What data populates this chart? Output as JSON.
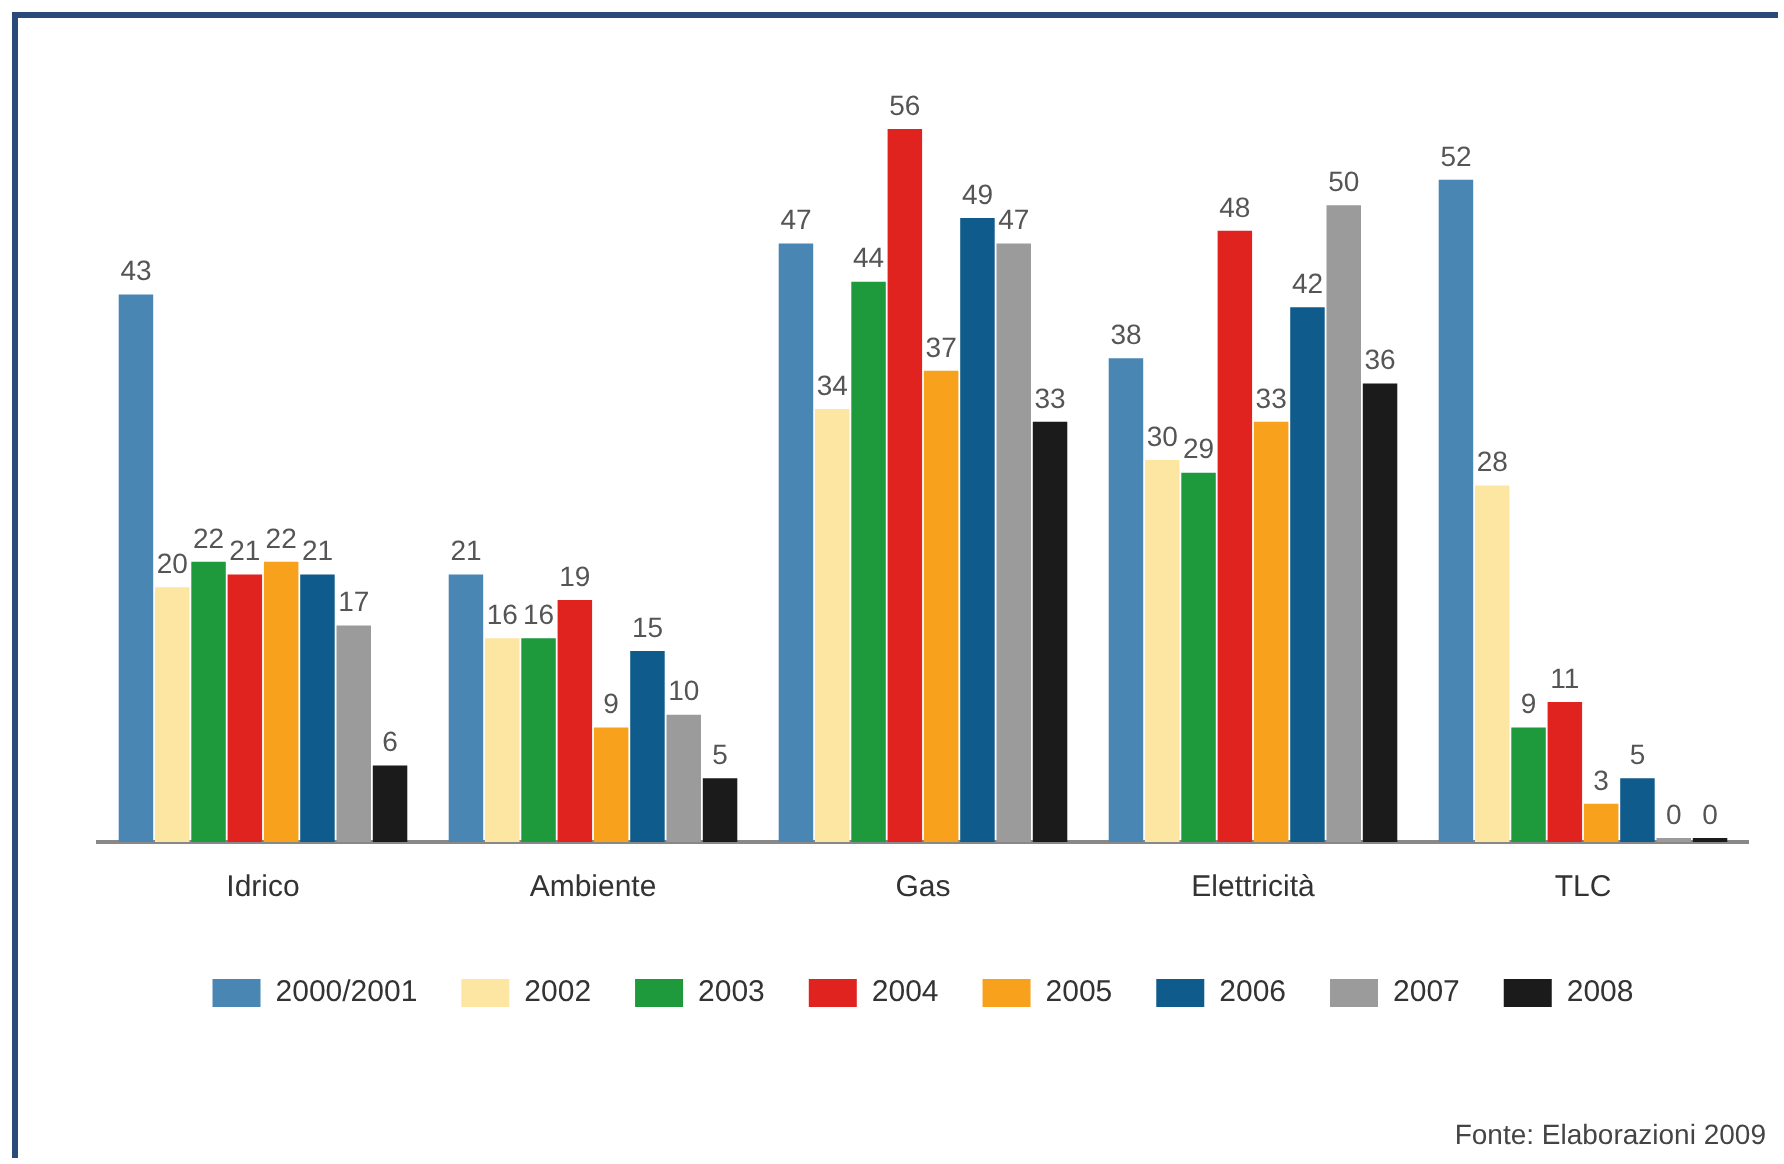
{
  "chart_data": {
    "type": "bar",
    "categories": [
      "Idrico",
      "Ambiente",
      "Gas",
      "Elettricità",
      "TLC"
    ],
    "series": [
      {
        "name": "2000/2001",
        "color": "#4a86b4",
        "values": [
          43,
          21,
          47,
          38,
          52
        ]
      },
      {
        "name": "2002",
        "color": "#fde6a2",
        "values": [
          20,
          16,
          34,
          30,
          28
        ]
      },
      {
        "name": "2003",
        "color": "#1e9a3c",
        "values": [
          22,
          16,
          44,
          29,
          9
        ]
      },
      {
        "name": "2004",
        "color": "#e0231e",
        "values": [
          21,
          19,
          56,
          48,
          11
        ]
      },
      {
        "name": "2005",
        "color": "#f7a11c",
        "values": [
          22,
          9,
          37,
          33,
          3
        ]
      },
      {
        "name": "2006",
        "color": "#0f5b8c",
        "values": [
          21,
          15,
          49,
          42,
          5
        ]
      },
      {
        "name": "2007",
        "color": "#9b9b9b",
        "values": [
          17,
          10,
          47,
          50,
          0
        ]
      },
      {
        "name": "2008",
        "color": "#1b1b1b",
        "values": [
          6,
          5,
          33,
          36,
          0
        ]
      }
    ],
    "data_labels": true,
    "grid": false,
    "legend": "bottom",
    "annotations": [
      "Fonte: Elaborazioni 2009"
    ]
  }
}
